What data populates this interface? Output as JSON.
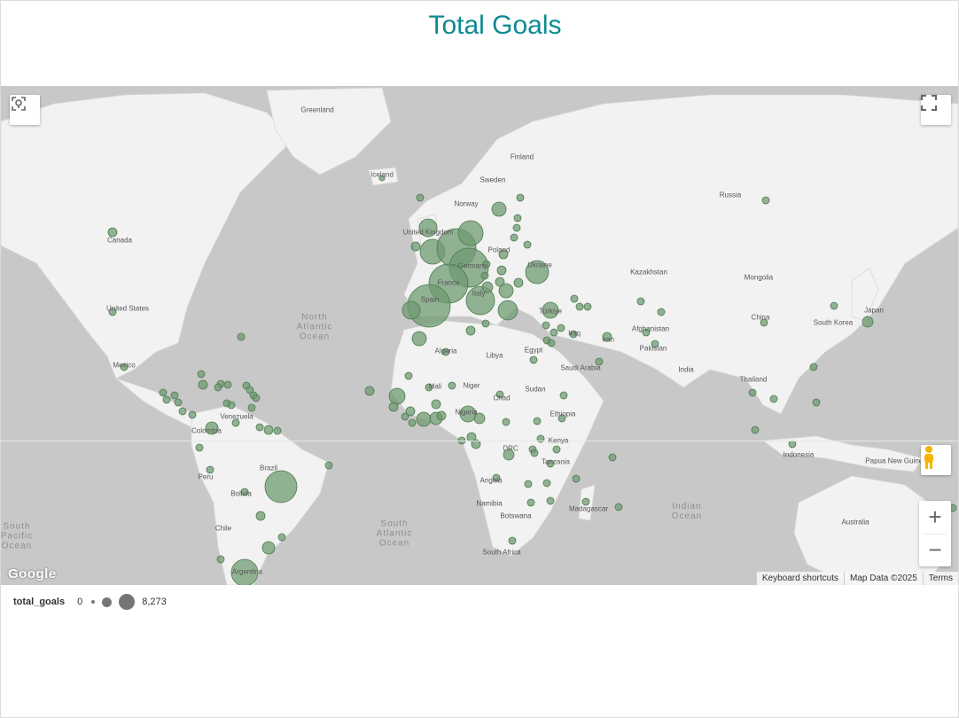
{
  "title": "Total Goals",
  "legend": {
    "field": "total_goals",
    "min": "0",
    "max": "8,273"
  },
  "attribution": {
    "shortcuts": "Keyboard shortcuts",
    "map_data": "Map Data ©2025",
    "terms": "Terms"
  },
  "brand": "Google",
  "icons": {
    "location": "location-icon",
    "fullscreen": "fullscreen-icon",
    "pegman": "pegman-icon",
    "zoom_in": "plus-icon",
    "zoom_out": "minus-icon"
  },
  "colors": {
    "title": "#0b8a94",
    "bubble_fill": "#6f9b72",
    "bubble_stroke": "#4d7a50",
    "water": "#c8c8c8",
    "land": "#f2f2f2"
  },
  "country_labels": [
    "Greenland",
    "Iceland",
    "Finland",
    "Sweden",
    "Norway",
    "Russia",
    "Canada",
    "United Kingdom",
    "Poland",
    "Germany",
    "Ukraine",
    "Kazakhstan",
    "Mongolia",
    "France",
    "Italy",
    "Spain",
    "Türkiye",
    "United States",
    "China",
    "South Korea",
    "Japan",
    "Afghanistan",
    "Iraq",
    "Iran",
    "Mexico",
    "Algeria",
    "Libya",
    "Egypt",
    "Saudi Arabia",
    "Pakistan",
    "India",
    "Mali",
    "Niger",
    "Chad",
    "Sudan",
    "Thailand",
    "Venezuela",
    "Colombia",
    "Nigeria",
    "Ethiopia",
    "Kenya",
    "DRC",
    "Tanzania",
    "Indonesia",
    "Papua New Guinea",
    "Brazil",
    "Peru",
    "Bolivia",
    "Angola",
    "Namibia",
    "Botswana",
    "Madagascar",
    "Chile",
    "South Africa",
    "Australia",
    "Argentina"
  ],
  "ocean_labels": [
    "North Atlantic Ocean",
    "South Atlantic Ocean",
    "Indian Ocean",
    "South Pacific Ocean"
  ]
}
